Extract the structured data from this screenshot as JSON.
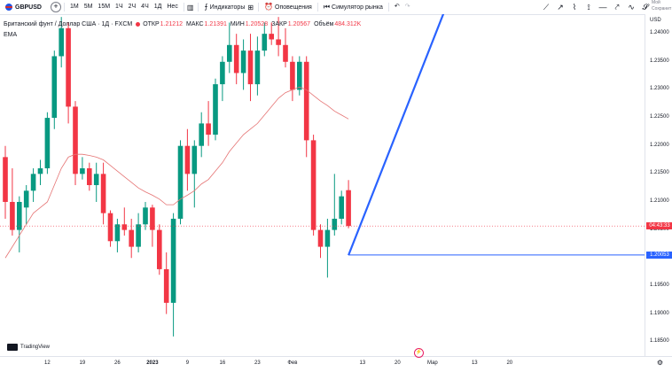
{
  "toolbar": {
    "symbol": "GBPUSD",
    "add_symbol": "+",
    "intervals": [
      "1М",
      "5М",
      "15М",
      "1Ч",
      "2Ч",
      "4Ч",
      "1Д",
      "Нес"
    ],
    "indicators_label": "Индикаторы",
    "alerts_label": "Оповещения",
    "replay_label": "Симулятор рынка",
    "undo": "↶",
    "redo": "↷",
    "drawing_tools": [
      "trend-line",
      "ray",
      "polyline",
      "path",
      "horizontal-line",
      "arrow",
      "curve",
      "brush"
    ],
    "save_top": "Мой",
    "save_bottom": "Сохранит"
  },
  "legend": {
    "title": "Британский фунт / Доллар США · 1Д · FXCM",
    "open_label": "ОТКР",
    "open": "1.21212",
    "high_label": "МАКС",
    "high": "1.21391",
    "low_label": "МИН",
    "low": "1.20528",
    "close_label": "ЗАКР",
    "close": "1.20567",
    "volume_label": "Объём",
    "volume": "484.312K",
    "ema_label": "EMA"
  },
  "price_axis": {
    "currency": "USD",
    "ticks": [
      "1.24000",
      "1.23500",
      "1.23000",
      "1.22500",
      "1.22000",
      "1.21500",
      "1.21000",
      "1.20500",
      "1.20000",
      "1.19500",
      "1.19000",
      "1.18500"
    ],
    "current_price_tag": "04:43:33",
    "horizontal_line_tag": "1.20053"
  },
  "time_axis": {
    "ticks": [
      "12",
      "19",
      "26",
      "2023",
      "9",
      "16",
      "23",
      "Фев",
      "13",
      "20",
      "Мар",
      "13",
      "20"
    ]
  },
  "watermark": "TradingView",
  "colors": {
    "up": "#089981",
    "down": "#f23645",
    "ema": "#e57373",
    "trend_line": "#2962ff",
    "horizontal_line": "#2962ff",
    "current_price_line": "#f23645"
  },
  "chart_data": {
    "type": "candlestick",
    "instrument": "GBPUSD",
    "timeframe": "1D",
    "ylim": [
      1.1825,
      1.2435
    ],
    "candles": [
      {
        "o": 1.218,
        "h": 1.22,
        "l": 1.207,
        "c": 1.21
      },
      {
        "o": 1.21,
        "h": 1.216,
        "l": 1.204,
        "c": 1.205
      },
      {
        "o": 1.205,
        "h": 1.211,
        "l": 1.201,
        "c": 1.21
      },
      {
        "o": 1.209,
        "h": 1.213,
        "l": 1.206,
        "c": 1.212
      },
      {
        "o": 1.212,
        "h": 1.216,
        "l": 1.21,
        "c": 1.215
      },
      {
        "o": 1.215,
        "h": 1.2175,
        "l": 1.213,
        "c": 1.216
      },
      {
        "o": 1.216,
        "h": 1.226,
        "l": 1.215,
        "c": 1.225
      },
      {
        "o": 1.225,
        "h": 1.237,
        "l": 1.223,
        "c": 1.236
      },
      {
        "o": 1.236,
        "h": 1.243,
        "l": 1.234,
        "c": 1.241
      },
      {
        "o": 1.241,
        "h": 1.242,
        "l": 1.224,
        "c": 1.227
      },
      {
        "o": 1.227,
        "h": 1.228,
        "l": 1.213,
        "c": 1.215
      },
      {
        "o": 1.215,
        "h": 1.218,
        "l": 1.214,
        "c": 1.216
      },
      {
        "o": 1.216,
        "h": 1.217,
        "l": 1.212,
        "c": 1.213
      },
      {
        "o": 1.213,
        "h": 1.217,
        "l": 1.21,
        "c": 1.215
      },
      {
        "o": 1.215,
        "h": 1.217,
        "l": 1.206,
        "c": 1.208
      },
      {
        "o": 1.208,
        "h": 1.2085,
        "l": 1.202,
        "c": 1.203
      },
      {
        "o": 1.203,
        "h": 1.207,
        "l": 1.201,
        "c": 1.206
      },
      {
        "o": 1.206,
        "h": 1.209,
        "l": 1.204,
        "c": 1.205
      },
      {
        "o": 1.205,
        "h": 1.207,
        "l": 1.2,
        "c": 1.202
      },
      {
        "o": 1.202,
        "h": 1.208,
        "l": 1.201,
        "c": 1.206
      },
      {
        "o": 1.206,
        "h": 1.21,
        "l": 1.205,
        "c": 1.209
      },
      {
        "o": 1.209,
        "h": 1.2095,
        "l": 1.202,
        "c": 1.205
      },
      {
        "o": 1.205,
        "h": 1.206,
        "l": 1.197,
        "c": 1.198
      },
      {
        "o": 1.198,
        "h": 1.201,
        "l": 1.19,
        "c": 1.192
      },
      {
        "o": 1.192,
        "h": 1.208,
        "l": 1.186,
        "c": 1.207
      },
      {
        "o": 1.207,
        "h": 1.221,
        "l": 1.206,
        "c": 1.22
      },
      {
        "o": 1.22,
        "h": 1.223,
        "l": 1.212,
        "c": 1.215
      },
      {
        "o": 1.215,
        "h": 1.221,
        "l": 1.209,
        "c": 1.22
      },
      {
        "o": 1.22,
        "h": 1.226,
        "l": 1.218,
        "c": 1.224
      },
      {
        "o": 1.224,
        "h": 1.228,
        "l": 1.22,
        "c": 1.222
      },
      {
        "o": 1.222,
        "h": 1.232,
        "l": 1.221,
        "c": 1.231
      },
      {
        "o": 1.231,
        "h": 1.236,
        "l": 1.228,
        "c": 1.235
      },
      {
        "o": 1.235,
        "h": 1.242,
        "l": 1.233,
        "c": 1.238
      },
      {
        "o": 1.238,
        "h": 1.24,
        "l": 1.231,
        "c": 1.233
      },
      {
        "o": 1.233,
        "h": 1.239,
        "l": 1.23,
        "c": 1.237
      },
      {
        "o": 1.237,
        "h": 1.24,
        "l": 1.228,
        "c": 1.231
      },
      {
        "o": 1.231,
        "h": 1.2395,
        "l": 1.229,
        "c": 1.237
      },
      {
        "o": 1.237,
        "h": 1.242,
        "l": 1.236,
        "c": 1.24
      },
      {
        "o": 1.24,
        "h": 1.242,
        "l": 1.238,
        "c": 1.239
      },
      {
        "o": 1.239,
        "h": 1.243,
        "l": 1.236,
        "c": 1.238
      },
      {
        "o": 1.238,
        "h": 1.241,
        "l": 1.234,
        "c": 1.235
      },
      {
        "o": 1.235,
        "h": 1.236,
        "l": 1.228,
        "c": 1.23
      },
      {
        "o": 1.23,
        "h": 1.236,
        "l": 1.229,
        "c": 1.235
      },
      {
        "o": 1.235,
        "h": 1.236,
        "l": 1.218,
        "c": 1.221
      },
      {
        "o": 1.221,
        "h": 1.222,
        "l": 1.204,
        "c": 1.205
      },
      {
        "o": 1.205,
        "h": 1.206,
        "l": 1.2,
        "c": 1.202
      },
      {
        "o": 1.202,
        "h": 1.207,
        "l": 1.1965,
        "c": 1.205
      },
      {
        "o": 1.205,
        "h": 1.215,
        "l": 1.204,
        "c": 1.207
      },
      {
        "o": 1.207,
        "h": 1.212,
        "l": 1.206,
        "c": 1.211
      },
      {
        "o": 1.2121,
        "h": 1.2139,
        "l": 1.2053,
        "c": 1.2057
      }
    ],
    "ema": [
      1.2,
      1.202,
      1.204,
      1.206,
      1.208,
      1.209,
      1.21,
      1.213,
      1.216,
      1.218,
      1.2185,
      1.2185,
      1.2183,
      1.218,
      1.2175,
      1.2165,
      1.2155,
      1.2145,
      1.2135,
      1.2125,
      1.2118,
      1.2112,
      1.2105,
      1.2095,
      1.2095,
      1.2105,
      1.2112,
      1.212,
      1.2132,
      1.214,
      1.2155,
      1.217,
      1.219,
      1.2205,
      1.222,
      1.223,
      1.224,
      1.2255,
      1.227,
      1.2285,
      1.2295,
      1.23,
      1.2305,
      1.23,
      1.229,
      1.228,
      1.2272,
      1.2262,
      1.2255,
      1.2248
    ],
    "trend_line": [
      {
        "x": 49,
        "y": 1.2005
      },
      {
        "x": 63,
        "y": 1.245
      }
    ],
    "horizontal_line": 1.20053
  }
}
